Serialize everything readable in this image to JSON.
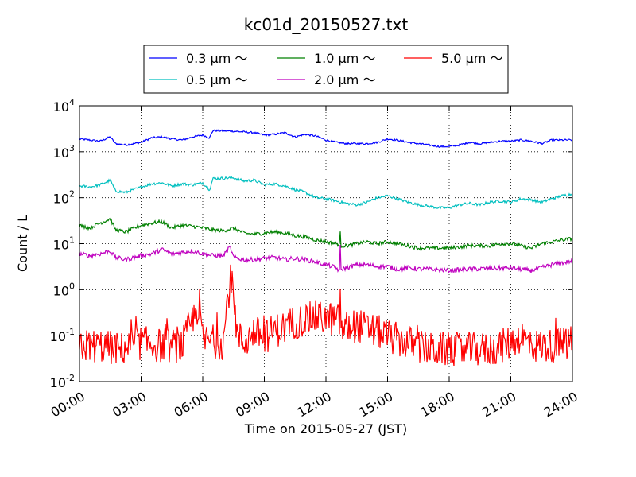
{
  "chart_data": {
    "type": "line",
    "title": "kc01d_20150527.txt",
    "xlabel": "Time on 2015-05-27 (JST)",
    "ylabel": "Count / L",
    "yscale": "log",
    "xlim": [
      "00:00",
      "24:00"
    ],
    "ylim": [
      0.01,
      10000
    ],
    "grid": true,
    "legend_position": "top-center",
    "x_ticks": [
      "00:00",
      "03:00",
      "06:00",
      "09:00",
      "12:00",
      "15:00",
      "18:00",
      "21:00",
      "24:00"
    ],
    "y_ticks": [
      {
        "base": "10",
        "exp": "4",
        "value": 10000
      },
      {
        "base": "10",
        "exp": "3",
        "value": 1000
      },
      {
        "base": "10",
        "exp": "2",
        "value": 100
      },
      {
        "base": "10",
        "exp": "1",
        "value": 10
      },
      {
        "base": "10",
        "exp": "0",
        "value": 1
      },
      {
        "base": "10",
        "exp": "-1",
        "value": 0.1
      },
      {
        "base": "10",
        "exp": "-2",
        "value": 0.01
      }
    ],
    "series": [
      {
        "name": "0.3 µm ～",
        "color": "#0000ff",
        "noise": 0.02,
        "points": [
          [
            "00:00",
            1900
          ],
          [
            "00:30",
            1800
          ],
          [
            "01:00",
            1700
          ],
          [
            "01:30",
            2100
          ],
          [
            "01:45",
            1500
          ],
          [
            "02:15",
            1400
          ],
          [
            "03:00",
            1600
          ],
          [
            "03:30",
            2000
          ],
          [
            "04:00",
            2100
          ],
          [
            "04:30",
            1900
          ],
          [
            "05:00",
            1800
          ],
          [
            "05:30",
            2100
          ],
          [
            "06:00",
            2300
          ],
          [
            "06:20",
            2000
          ],
          [
            "06:30",
            2900
          ],
          [
            "07:30",
            2800
          ],
          [
            "08:30",
            2600
          ],
          [
            "09:00",
            2300
          ],
          [
            "09:30",
            2400
          ],
          [
            "10:00",
            2600
          ],
          [
            "10:30",
            2100
          ],
          [
            "11:00",
            2400
          ],
          [
            "11:30",
            2200
          ],
          [
            "12:00",
            1800
          ],
          [
            "12:30",
            1600
          ],
          [
            "13:00",
            1500
          ],
          [
            "14:00",
            1500
          ],
          [
            "14:30",
            1600
          ],
          [
            "15:00",
            1900
          ],
          [
            "15:30",
            1800
          ],
          [
            "16:00",
            1600
          ],
          [
            "16:30",
            1500
          ],
          [
            "17:00",
            1400
          ],
          [
            "17:30",
            1300
          ],
          [
            "18:00",
            1300
          ],
          [
            "18:30",
            1400
          ],
          [
            "19:00",
            1600
          ],
          [
            "19:30",
            1500
          ],
          [
            "20:00",
            1600
          ],
          [
            "20:30",
            1700
          ],
          [
            "21:00",
            1700
          ],
          [
            "21:30",
            1800
          ],
          [
            "22:00",
            1700
          ],
          [
            "22:30",
            1500
          ],
          [
            "23:00",
            1800
          ],
          [
            "24:00",
            1800
          ]
        ]
      },
      {
        "name": "0.5 µm ～",
        "color": "#00bfbf",
        "noise": 0.03,
        "points": [
          [
            "00:00",
            180
          ],
          [
            "00:30",
            170
          ],
          [
            "01:00",
            190
          ],
          [
            "01:30",
            240
          ],
          [
            "01:45",
            140
          ],
          [
            "02:15",
            130
          ],
          [
            "03:00",
            170
          ],
          [
            "03:30",
            200
          ],
          [
            "04:00",
            210
          ],
          [
            "04:30",
            180
          ],
          [
            "05:00",
            200
          ],
          [
            "05:30",
            190
          ],
          [
            "06:00",
            210
          ],
          [
            "06:20",
            150
          ],
          [
            "06:30",
            260
          ],
          [
            "07:30",
            270
          ],
          [
            "08:00",
            230
          ],
          [
            "08:30",
            240
          ],
          [
            "09:00",
            190
          ],
          [
            "09:30",
            200
          ],
          [
            "10:00",
            180
          ],
          [
            "10:30",
            150
          ],
          [
            "11:00",
            130
          ],
          [
            "11:30",
            100
          ],
          [
            "12:00",
            95
          ],
          [
            "12:30",
            85
          ],
          [
            "13:00",
            75
          ],
          [
            "13:30",
            70
          ],
          [
            "14:00",
            80
          ],
          [
            "14:30",
            100
          ],
          [
            "15:00",
            110
          ],
          [
            "15:30",
            95
          ],
          [
            "16:00",
            80
          ],
          [
            "16:30",
            70
          ],
          [
            "17:00",
            65
          ],
          [
            "17:30",
            60
          ],
          [
            "18:00",
            60
          ],
          [
            "18:30",
            70
          ],
          [
            "19:00",
            75
          ],
          [
            "19:30",
            70
          ],
          [
            "20:00",
            80
          ],
          [
            "20:30",
            85
          ],
          [
            "21:00",
            80
          ],
          [
            "21:30",
            95
          ],
          [
            "22:00",
            90
          ],
          [
            "22:30",
            80
          ],
          [
            "23:00",
            95
          ],
          [
            "23:30",
            110
          ],
          [
            "24:00",
            120
          ]
        ]
      },
      {
        "name": "1.0 µm ～",
        "color": "#008000",
        "noise": 0.04,
        "points": [
          [
            "00:00",
            25
          ],
          [
            "00:30",
            22
          ],
          [
            "01:00",
            28
          ],
          [
            "01:30",
            35
          ],
          [
            "01:45",
            20
          ],
          [
            "02:15",
            18
          ],
          [
            "03:00",
            25
          ],
          [
            "03:30",
            28
          ],
          [
            "04:00",
            30
          ],
          [
            "04:30",
            22
          ],
          [
            "05:00",
            25
          ],
          [
            "05:30",
            24
          ],
          [
            "06:00",
            22
          ],
          [
            "06:30",
            20
          ],
          [
            "07:00",
            19
          ],
          [
            "07:30",
            22
          ],
          [
            "08:00",
            17
          ],
          [
            "08:30",
            16
          ],
          [
            "09:00",
            17
          ],
          [
            "09:30",
            18
          ],
          [
            "10:00",
            17
          ],
          [
            "10:30",
            15
          ],
          [
            "11:00",
            14
          ],
          [
            "11:30",
            12
          ],
          [
            "12:00",
            11
          ],
          [
            "12:30",
            10
          ],
          [
            "12:40",
            9.5
          ],
          [
            "12:42",
            18
          ],
          [
            "12:44",
            9
          ],
          [
            "13:00",
            9
          ],
          [
            "13:30",
            10
          ],
          [
            "14:00",
            11
          ],
          [
            "14:30",
            10
          ],
          [
            "15:00",
            11
          ],
          [
            "15:30",
            10
          ],
          [
            "16:00",
            9
          ],
          [
            "16:30",
            8
          ],
          [
            "17:00",
            8
          ],
          [
            "18:00",
            8
          ],
          [
            "19:00",
            9
          ],
          [
            "20:00",
            9
          ],
          [
            "20:30",
            10
          ],
          [
            "21:00",
            10
          ],
          [
            "21:30",
            9
          ],
          [
            "22:00",
            8
          ],
          [
            "22:30",
            10
          ],
          [
            "23:00",
            11
          ],
          [
            "24:00",
            13
          ]
        ]
      },
      {
        "name": "2.0 µm ～",
        "color": "#bf00bf",
        "noise": 0.05,
        "points": [
          [
            "00:00",
            6
          ],
          [
            "00:30",
            5.5
          ],
          [
            "01:00",
            6
          ],
          [
            "01:30",
            7
          ],
          [
            "01:45",
            5
          ],
          [
            "02:15",
            4.5
          ],
          [
            "03:00",
            5.5
          ],
          [
            "03:30",
            6
          ],
          [
            "04:00",
            7.5
          ],
          [
            "04:30",
            6
          ],
          [
            "05:00",
            6.5
          ],
          [
            "05:30",
            7
          ],
          [
            "06:00",
            6
          ],
          [
            "06:30",
            5.5
          ],
          [
            "07:00",
            5.5
          ],
          [
            "07:20",
            8.5
          ],
          [
            "07:30",
            5
          ],
          [
            "08:00",
            4.5
          ],
          [
            "08:30",
            4.5
          ],
          [
            "09:00",
            4.8
          ],
          [
            "09:30",
            5
          ],
          [
            "10:00",
            4.5
          ],
          [
            "10:30",
            4.8
          ],
          [
            "11:00",
            4.5
          ],
          [
            "11:30",
            4
          ],
          [
            "12:00",
            3.5
          ],
          [
            "12:30",
            3
          ],
          [
            "12:40",
            2.5
          ],
          [
            "12:42",
            10
          ],
          [
            "12:44",
            2.8
          ],
          [
            "13:00",
            3
          ],
          [
            "13:30",
            3.5
          ],
          [
            "14:00",
            3.5
          ],
          [
            "14:30",
            3.2
          ],
          [
            "15:00",
            3.2
          ],
          [
            "15:30",
            2.8
          ],
          [
            "16:00",
            3
          ],
          [
            "16:30",
            2.8
          ],
          [
            "17:00",
            2.8
          ],
          [
            "18:00",
            2.6
          ],
          [
            "19:00",
            2.8
          ],
          [
            "20:00",
            2.9
          ],
          [
            "21:00",
            3
          ],
          [
            "21:30",
            2.8
          ],
          [
            "22:00",
            2.6
          ],
          [
            "22:30",
            3
          ],
          [
            "23:00",
            3.5
          ],
          [
            "24:00",
            4.2
          ]
        ]
      },
      {
        "name": "5.0 µm ～",
        "color": "#ff0000",
        "noise": 0.38,
        "points": [
          [
            "00:00",
            0.06
          ],
          [
            "01:00",
            0.06
          ],
          [
            "02:00",
            0.05
          ],
          [
            "03:00",
            0.07
          ],
          [
            "04:00",
            0.06
          ],
          [
            "05:00",
            0.06
          ],
          [
            "05:50",
            0.5
          ],
          [
            "06:00",
            0.08
          ],
          [
            "07:00",
            0.07
          ],
          [
            "07:15",
            0.9
          ],
          [
            "07:30",
            1.2
          ],
          [
            "07:40",
            0.1
          ],
          [
            "08:00",
            0.07
          ],
          [
            "08:30",
            0.12
          ],
          [
            "09:00",
            0.09
          ],
          [
            "09:30",
            0.13
          ],
          [
            "10:00",
            0.15
          ],
          [
            "10:30",
            0.2
          ],
          [
            "11:00",
            0.22
          ],
          [
            "11:30",
            0.25
          ],
          [
            "12:00",
            0.24
          ],
          [
            "12:30",
            0.22
          ],
          [
            "12:40",
            0.2
          ],
          [
            "12:42",
            1.7
          ],
          [
            "12:44",
            0.12
          ],
          [
            "13:00",
            0.15
          ],
          [
            "13:30",
            0.17
          ],
          [
            "14:00",
            0.14
          ],
          [
            "14:30",
            0.12
          ],
          [
            "15:00",
            0.1
          ],
          [
            "15:30",
            0.08
          ],
          [
            "16:00",
            0.07
          ],
          [
            "17:00",
            0.05
          ],
          [
            "18:00",
            0.05
          ],
          [
            "19:00",
            0.05
          ],
          [
            "20:00",
            0.05
          ],
          [
            "21:00",
            0.07
          ],
          [
            "21:30",
            0.1
          ],
          [
            "22:00",
            0.06
          ],
          [
            "23:00",
            0.06
          ],
          [
            "24:00",
            0.07
          ]
        ]
      }
    ],
    "legend_layout": [
      [
        0,
        2,
        4
      ],
      [
        1,
        3
      ]
    ]
  }
}
